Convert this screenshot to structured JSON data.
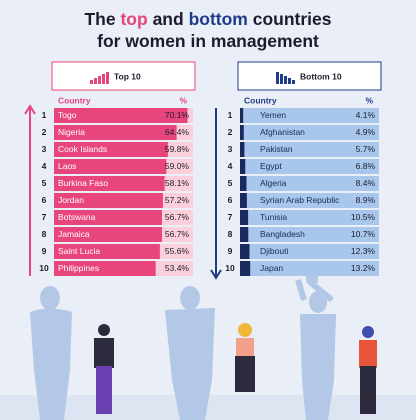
{
  "title": [
    "The",
    "top",
    "and",
    "bottom",
    "countries",
    "for women in management"
  ],
  "title_colors": [
    "#1c1c2e",
    "#e8457c",
    "#1c1c2e",
    "#1f3c88",
    "#1c1c2e",
    "#1c1c2e"
  ],
  "chart_data": [
    {
      "type": "bar",
      "heading": "Top 10",
      "rank_header": "Country",
      "value_header": "%",
      "ranks": [
        1,
        2,
        3,
        4,
        5,
        6,
        7,
        8,
        9,
        10
      ],
      "categories": [
        "Togo",
        "Nigeria",
        "Cook Islands",
        "Laos",
        "Burkina Faso",
        "Jordan",
        "Botswana",
        "Jamaica",
        "Saint Lucia",
        "Philippines"
      ],
      "values": [
        70.1,
        64.4,
        59.8,
        59.0,
        58.1,
        57.2,
        56.7,
        56.7,
        55.6,
        53.4
      ],
      "value_labels": [
        "70.1%",
        "64.4%",
        "59.8%",
        "59.0%",
        "58.1%",
        "57.2%",
        "56.7%",
        "56.7%",
        "55.6%",
        "53.4%"
      ],
      "xlim": [
        0,
        73
      ],
      "color": "#e8457c",
      "row_color": "#fbd0dc",
      "label_color": "#ffffff",
      "accent": "#e8457c"
    },
    {
      "type": "bar",
      "heading": "Bottom 10",
      "rank_header": "Country",
      "value_header": "%",
      "ranks": [
        1,
        2,
        3,
        4,
        5,
        6,
        7,
        8,
        9,
        10
      ],
      "categories": [
        "Yemen",
        "Afghanistan",
        "Pakistan",
        "Egypt",
        "Algeria",
        "Syrian Arab Republic",
        "Tunisia",
        "Bangladesh",
        "Djibouti",
        "Japan"
      ],
      "values": [
        4.1,
        4.9,
        5.7,
        6.8,
        8.4,
        8.9,
        10.5,
        10.7,
        12.3,
        13.2
      ],
      "value_labels": [
        "4.1%",
        "4.9%",
        "5.7%",
        "6.8%",
        "8.4%",
        "8.9%",
        "10.5%",
        "10.7%",
        "12.3%",
        "13.2%"
      ],
      "xlim": [
        0,
        180
      ],
      "color": "#1b2a5c",
      "row_color": "#a9c6ec",
      "label_color": "#1b2a5c",
      "accent": "#1f3c88"
    }
  ]
}
